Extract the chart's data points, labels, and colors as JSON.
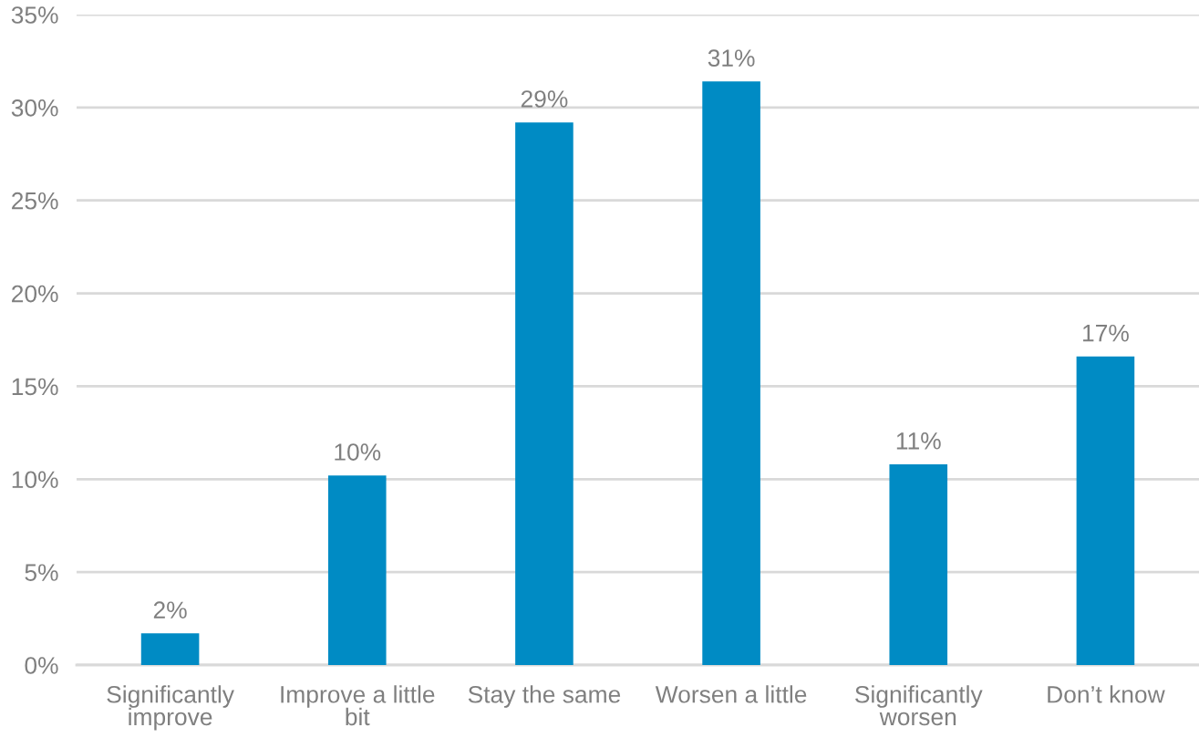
{
  "chart_data": {
    "type": "bar",
    "categories": [
      "Significantly improve",
      "Improve a little bit",
      "Stay the same",
      "Worsen a little",
      "Significantly worsen",
      "Don’t know"
    ],
    "values": [
      1.7,
      10.2,
      29.2,
      31.4,
      10.8,
      16.6
    ],
    "value_labels": [
      "2%",
      "10%",
      "29%",
      "31%",
      "11%",
      "17%"
    ],
    "color": "#008bc4",
    "ylim": [
      0,
      35
    ],
    "yticks": [
      {
        "value": 0,
        "label": "0%"
      },
      {
        "value": 5,
        "label": "5%"
      },
      {
        "value": 10,
        "label": "10%"
      },
      {
        "value": 15,
        "label": "15%"
      },
      {
        "value": 20,
        "label": "20%"
      },
      {
        "value": 25,
        "label": "25%"
      },
      {
        "value": 30,
        "label": "30%"
      },
      {
        "value": 35,
        "label": "35%"
      }
    ],
    "grid": "y",
    "legend": false
  }
}
